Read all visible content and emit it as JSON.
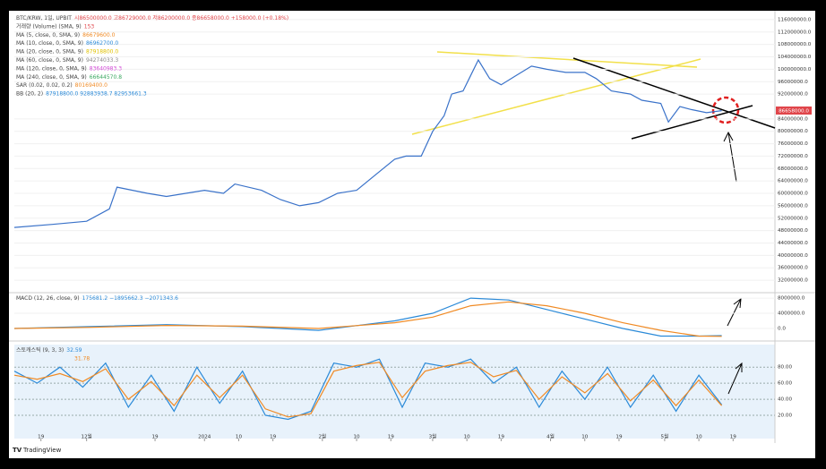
{
  "chart_data": [
    {
      "type": "line",
      "legend": [
        {
          "label": "BTC/KRW, 1일, UPBIT",
          "value": "시86500000.0 고86729000.0 저86200000.0 종86658000.0 +158000.0 (+0.18%)",
          "color": "#e0454a"
        },
        {
          "label": "거래량 (Volume) (SMA, 9)",
          "value": "153",
          "color": "#e0454a"
        },
        {
          "label": "MA (5, close, 0, SMA, 9)",
          "value": "86679600.0",
          "color": "#f08a24"
        },
        {
          "label": "MA (10, close, 0, SMA, 9)",
          "value": "86962700.0",
          "color": "#2b8ad8"
        },
        {
          "label": "MA (20, close, 0, SMA, 9)",
          "value": "87918800.0",
          "color": "#e0c200"
        },
        {
          "label": "MA (60, close, 0, SMA, 9)",
          "value": "94274033.3",
          "color": "#888888"
        },
        {
          "label": "MA (120, close, 0, SMA, 9)",
          "value": "83640983.3",
          "color": "#d24ad6"
        },
        {
          "label": "MA (240, close, 0, SMA, 9)",
          "value": "66644570.8",
          "color": "#3aa860"
        },
        {
          "label": "SAR (0.02, 0.02, 0.2)",
          "value": "80169400.0",
          "color": "#f08a24"
        },
        {
          "label": "BB (20, 2)",
          "value": "87918800.0  92883938.7  82953661.3",
          "color": "#2b8ad8"
        }
      ],
      "last_price_label": "86658000.0",
      "x": [
        0,
        10,
        19,
        25,
        27,
        35,
        40,
        50,
        55,
        58,
        65,
        70,
        75,
        80,
        85,
        90,
        95,
        100,
        103,
        107,
        110,
        113,
        115,
        118,
        120,
        122,
        125,
        128,
        132,
        136,
        140,
        145,
        150,
        153,
        157,
        162,
        165,
        170,
        172,
        175,
        178,
        182,
        186
      ],
      "values": [
        49000000,
        50000000,
        51000000,
        55000000,
        62000000,
        60000000,
        59000000,
        61000000,
        60000000,
        63000000,
        61000000,
        58000000,
        56000000,
        57000000,
        60000000,
        61000000,
        66000000,
        71000000,
        72000000,
        72000000,
        80000000,
        85000000,
        92000000,
        93000000,
        98000000,
        103000000,
        97000000,
        95000000,
        98000000,
        101000000,
        100000000,
        99000000,
        99000000,
        97000000,
        93000000,
        92000000,
        90000000,
        89000000,
        83000000,
        88000000,
        87000000,
        86000000,
        86658000
      ],
      "color": "#3a72c9",
      "xlim": [
        0,
        200
      ],
      "xticks": [
        {
          "value": 7,
          "label": "19"
        },
        {
          "value": 19,
          "label": "12월"
        },
        {
          "value": 37,
          "label": "19"
        },
        {
          "value": 50,
          "label": "2024"
        },
        {
          "value": 59,
          "label": "10"
        },
        {
          "value": 68,
          "label": "19"
        },
        {
          "value": 81,
          "label": "2월"
        },
        {
          "value": 90,
          "label": "10"
        },
        {
          "value": 99,
          "label": "19"
        },
        {
          "value": 110,
          "label": "3월"
        },
        {
          "value": 119,
          "label": "10"
        },
        {
          "value": 128,
          "label": "19"
        },
        {
          "value": 141,
          "label": "4월"
        },
        {
          "value": 150,
          "label": "10"
        },
        {
          "value": 159,
          "label": "19"
        },
        {
          "value": 171,
          "label": "5월"
        },
        {
          "value": 180,
          "label": "10"
        },
        {
          "value": 189,
          "label": "19"
        }
      ],
      "ylim": [
        30000000,
        118000000
      ],
      "yticks": [
        {
          "value": 116000000,
          "label": "116000000.0"
        },
        {
          "value": 112000000,
          "label": "112000000.0"
        },
        {
          "value": 108000000,
          "label": "108000000.0"
        },
        {
          "value": 104000000,
          "label": "104000000.0"
        },
        {
          "value": 100000000,
          "label": "100000000.0"
        },
        {
          "value": 96000000,
          "label": "96000000.0"
        },
        {
          "value": 92000000,
          "label": "92000000.0"
        },
        {
          "value": 84000000,
          "label": "84000000.0"
        },
        {
          "value": 80000000,
          "label": "80000000.0"
        },
        {
          "value": 76000000,
          "label": "76000000.0"
        },
        {
          "value": 72000000,
          "label": "72000000.0"
        },
        {
          "value": 68000000,
          "label": "68000000.0"
        },
        {
          "value": 64000000,
          "label": "64000000.0"
        },
        {
          "value": 60000000,
          "label": "60000000.0"
        },
        {
          "value": 56000000,
          "label": "56000000.0"
        },
        {
          "value": 52000000,
          "label": "52000000.0"
        },
        {
          "value": 48000000,
          "label": "48000000.0"
        },
        {
          "value": 44000000,
          "label": "44000000.0"
        },
        {
          "value": 40000000,
          "label": "40000000.0"
        },
        {
          "value": 36000000,
          "label": "36000000.0"
        },
        {
          "value": 32000000,
          "label": "32000000.0"
        }
      ]
    },
    {
      "type": "line",
      "legend": [
        {
          "label": "MACD (12, 26, close, 9)",
          "value": "175681.2  −1895662.3  −2071343.6",
          "color": "#2b8ad8"
        }
      ],
      "x": [
        0,
        20,
        40,
        60,
        80,
        100,
        110,
        120,
        130,
        140,
        150,
        160,
        170,
        180,
        186
      ],
      "series": [
        {
          "color": "#2b8ad8",
          "values": [
            0,
            500000,
            1000000,
            500000,
            -500000,
            2000000,
            4000000,
            8000000,
            7500000,
            5000000,
            2500000,
            0,
            -2000000,
            -2000000,
            -1900000
          ]
        },
        {
          "color": "#f08a24",
          "values": [
            0,
            300000,
            800000,
            600000,
            0,
            1500000,
            3000000,
            6000000,
            7000000,
            6000000,
            4000000,
            1500000,
            -500000,
            -2000000,
            -2070000
          ]
        }
      ],
      "xlim": [
        0,
        200
      ],
      "ylim": [
        -2600000,
        9200000
      ],
      "yticks": [
        {
          "value": 8000000,
          "label": "8000000.0"
        },
        {
          "value": 4000000,
          "label": "4000000.0"
        },
        {
          "value": 0,
          "label": "0.0"
        }
      ]
    },
    {
      "type": "line",
      "legend": [
        {
          "label": "스토캐스틱 (9, 3, 3)",
          "value": "32.59",
          "color": "#2b8ad8"
        },
        {
          "label": "",
          "value": "31.78",
          "color": "#f08a24"
        }
      ],
      "x": [
        0,
        6,
        12,
        18,
        24,
        30,
        36,
        42,
        48,
        54,
        60,
        66,
        72,
        78,
        84,
        90,
        96,
        102,
        108,
        114,
        120,
        126,
        132,
        138,
        144,
        150,
        156,
        162,
        168,
        174,
        180,
        186
      ],
      "series": [
        {
          "color": "#2b8ad8",
          "values": [
            75,
            60,
            80,
            55,
            85,
            30,
            70,
            25,
            80,
            35,
            75,
            20,
            15,
            25,
            85,
            80,
            90,
            30,
            85,
            80,
            90,
            60,
            80,
            30,
            75,
            40,
            80,
            30,
            70,
            25,
            70,
            33
          ]
        },
        {
          "color": "#f08a24",
          "values": [
            70,
            65,
            72,
            62,
            78,
            40,
            62,
            32,
            70,
            42,
            70,
            28,
            18,
            22,
            75,
            82,
            86,
            42,
            75,
            82,
            86,
            68,
            76,
            40,
            68,
            48,
            72,
            38,
            64,
            32,
            64,
            32
          ]
        }
      ],
      "xlim": [
        0,
        200
      ],
      "ylim": [
        -9,
        107
      ],
      "yticks": [
        {
          "value": 80,
          "label": "80.00"
        },
        {
          "value": 60,
          "label": "60.00"
        },
        {
          "value": 40,
          "label": "40.00"
        },
        {
          "value": 20,
          "label": "20.00"
        }
      ]
    }
  ],
  "footer": {
    "brand": "TradingView"
  }
}
